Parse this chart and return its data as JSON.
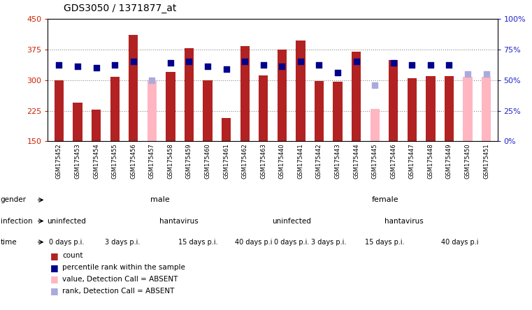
{
  "title": "GDS3050 / 1371877_at",
  "samples": [
    "GSM175452",
    "GSM175453",
    "GSM175454",
    "GSM175455",
    "GSM175456",
    "GSM175457",
    "GSM175458",
    "GSM175459",
    "GSM175460",
    "GSM175461",
    "GSM175462",
    "GSM175463",
    "GSM175440",
    "GSM175441",
    "GSM175442",
    "GSM175443",
    "GSM175444",
    "GSM175445",
    "GSM175446",
    "GSM175447",
    "GSM175448",
    "GSM175449",
    "GSM175450",
    "GSM175451"
  ],
  "count_values": [
    300,
    245,
    228,
    308,
    410,
    null,
    320,
    378,
    300,
    207,
    383,
    312,
    374,
    397,
    298,
    295,
    370,
    null,
    348,
    305,
    310,
    310,
    null,
    null
  ],
  "rank_values": [
    62,
    61,
    60,
    62,
    65,
    null,
    64,
    65,
    61,
    59,
    65,
    62,
    61,
    65,
    62,
    56,
    65,
    null,
    64,
    62,
    62,
    62,
    null,
    null
  ],
  "absent_count_values": [
    null,
    null,
    null,
    null,
    null,
    300,
    null,
    null,
    null,
    null,
    null,
    null,
    null,
    null,
    null,
    null,
    null,
    230,
    null,
    null,
    null,
    null,
    308,
    308
  ],
  "absent_rank_values": [
    null,
    null,
    null,
    null,
    null,
    50,
    null,
    null,
    null,
    null,
    null,
    null,
    null,
    null,
    null,
    null,
    null,
    46,
    null,
    null,
    null,
    null,
    55,
    55
  ],
  "ylim": [
    150,
    450
  ],
  "yticks": [
    150,
    225,
    300,
    375,
    450
  ],
  "y2lim": [
    0,
    100
  ],
  "y2ticks": [
    0,
    25,
    50,
    75,
    100
  ],
  "y2ticklabels": [
    "0%",
    "25%",
    "50%",
    "75%",
    "100%"
  ],
  "bar_color_red": "#B22222",
  "bar_color_pink": "#FFB6C1",
  "dot_color_blue": "#00008B",
  "dot_color_lightblue": "#AAAADD",
  "grid_color": "#888888",
  "label_color_red": "#CC2200",
  "label_color_blue": "#2222CC",
  "gender_labels": [
    {
      "text": "male",
      "start": 0,
      "end": 12,
      "color": "#AADDAA"
    },
    {
      "text": "female",
      "start": 12,
      "end": 24,
      "color": "#55CC66"
    }
  ],
  "infection_labels": [
    {
      "text": "uninfected",
      "start": 0,
      "end": 2,
      "color": "#AAAAEE"
    },
    {
      "text": "hantavirus",
      "start": 2,
      "end": 12,
      "color": "#8888CC"
    },
    {
      "text": "uninfected",
      "start": 12,
      "end": 14,
      "color": "#AAAAEE"
    },
    {
      "text": "hantavirus",
      "start": 14,
      "end": 24,
      "color": "#8888CC"
    }
  ],
  "time_labels": [
    {
      "text": "0 days p.i.",
      "start": 0,
      "end": 2,
      "color": "#F5B8B8"
    },
    {
      "text": "3 days p.i.",
      "start": 2,
      "end": 6,
      "color": "#EE9999"
    },
    {
      "text": "15 days p.i.",
      "start": 6,
      "end": 10,
      "color": "#DD7777"
    },
    {
      "text": "40 days p.i",
      "start": 10,
      "end": 12,
      "color": "#CC6666"
    },
    {
      "text": "0 days p.i.",
      "start": 12,
      "end": 14,
      "color": "#F5B8B8"
    },
    {
      "text": "3 days p.i.",
      "start": 14,
      "end": 16,
      "color": "#EE9999"
    },
    {
      "text": "15 days p.i.",
      "start": 16,
      "end": 20,
      "color": "#DD7777"
    },
    {
      "text": "40 days p.i",
      "start": 20,
      "end": 24,
      "color": "#CC6666"
    }
  ]
}
